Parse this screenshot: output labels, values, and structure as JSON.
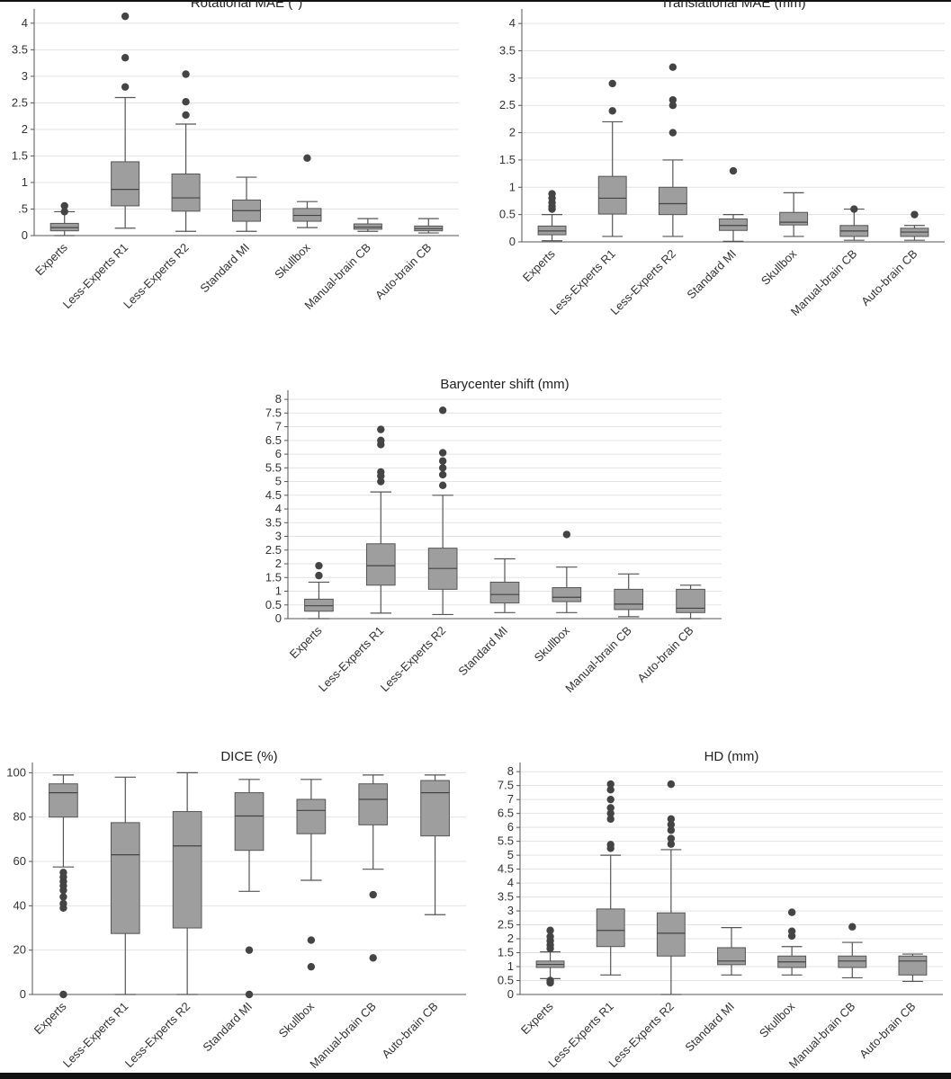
{
  "chart_data": [
    {
      "type": "box",
      "title": "Rotational MAE (°)",
      "ylim": [
        0,
        4.2
      ],
      "yticks": [
        0,
        0.5,
        1,
        1.5,
        2,
        2.5,
        3,
        3.5,
        4
      ],
      "ytick_labels": [
        "0",
        ".5",
        "1",
        "1.5",
        "2",
        "2.5",
        "3",
        "3.5",
        "4"
      ],
      "categories": [
        "Experts",
        "Less-Experts R1",
        "Less-Experts R2",
        "Standard MI",
        "Skullbox",
        "Manual-brain CB",
        "Auto-brain CB"
      ],
      "boxes": [
        {
          "min": 0.0,
          "q1": 0.09,
          "median": 0.15,
          "q3": 0.23,
          "max": 0.45,
          "outliers": [
            0.45,
            0.56
          ]
        },
        {
          "min": 0.14,
          "q1": 0.56,
          "median": 0.87,
          "q3": 1.39,
          "max": 2.6,
          "outliers": [
            2.8,
            3.35,
            4.13
          ]
        },
        {
          "min": 0.08,
          "q1": 0.46,
          "median": 0.71,
          "q3": 1.16,
          "max": 2.1,
          "outliers": [
            2.27,
            2.52,
            3.04
          ]
        },
        {
          "min": 0.08,
          "q1": 0.27,
          "median": 0.47,
          "q3": 0.67,
          "max": 1.1,
          "outliers": []
        },
        {
          "min": 0.15,
          "q1": 0.27,
          "median": 0.38,
          "q3": 0.51,
          "max": 0.64,
          "outliers": [
            1.46
          ]
        },
        {
          "min": 0.08,
          "q1": 0.12,
          "median": 0.16,
          "q3": 0.22,
          "max": 0.32,
          "outliers": []
        },
        {
          "min": 0.05,
          "q1": 0.09,
          "median": 0.13,
          "q3": 0.18,
          "max": 0.32,
          "outliers": []
        }
      ]
    },
    {
      "type": "box",
      "title": "Translational MAE (mm)",
      "ylim": [
        0,
        4.2
      ],
      "yticks": [
        0,
        0.5,
        1,
        1.5,
        2,
        2.5,
        3,
        3.5,
        4
      ],
      "ytick_labels": [
        "0",
        "0.5",
        "1",
        "1.5",
        "2",
        "2.5",
        "3",
        "3.5",
        "4"
      ],
      "categories": [
        "Experts",
        "Less-Experts R1",
        "Less-Experts R2",
        "Standard MI",
        "Skullbox",
        "Manual-brain CB",
        "Auto-brain CB"
      ],
      "boxes": [
        {
          "min": 0.02,
          "q1": 0.13,
          "median": 0.2,
          "q3": 0.29,
          "max": 0.5,
          "outliers": [
            0.6,
            0.65,
            0.72,
            0.8,
            0.88
          ]
        },
        {
          "min": 0.1,
          "q1": 0.51,
          "median": 0.8,
          "q3": 1.2,
          "max": 2.2,
          "outliers": [
            2.4,
            2.9
          ]
        },
        {
          "min": 0.1,
          "q1": 0.5,
          "median": 0.7,
          "q3": 1.0,
          "max": 1.5,
          "outliers": [
            2.0,
            2.5,
            2.6,
            3.2
          ]
        },
        {
          "min": 0.01,
          "q1": 0.21,
          "median": 0.3,
          "q3": 0.42,
          "max": 0.5,
          "outliers": [
            1.3
          ]
        },
        {
          "min": 0.1,
          "q1": 0.31,
          "median": 0.36,
          "q3": 0.54,
          "max": 0.9,
          "outliers": []
        },
        {
          "min": 0.03,
          "q1": 0.1,
          "median": 0.2,
          "q3": 0.3,
          "max": 0.6,
          "outliers": [
            0.6
          ]
        },
        {
          "min": 0.03,
          "q1": 0.1,
          "median": 0.18,
          "q3": 0.25,
          "max": 0.3,
          "outliers": [
            0.5
          ]
        }
      ]
    },
    {
      "type": "box",
      "title": "Barycenter shift (mm)",
      "ylim": [
        0,
        8.2
      ],
      "yticks": [
        0,
        0.5,
        1,
        1.5,
        2,
        2.5,
        3,
        3.5,
        4,
        4.5,
        5,
        5.5,
        6,
        6.5,
        7,
        7.5,
        8
      ],
      "ytick_labels": [
        "0",
        "0.5",
        "1",
        "1.5",
        "2",
        "2.5",
        "3",
        "3.5",
        "4",
        "4.5",
        "5",
        "5.5",
        "6",
        "6.5",
        "7",
        "7.5",
        "8"
      ],
      "categories": [
        "Experts",
        "Less-Experts R1",
        "Less-Experts R2",
        "Standard MI",
        "Skullbox",
        "Manual-brain CB",
        "Auto-brain CB"
      ],
      "boxes": [
        {
          "min": 0.0,
          "q1": 0.27,
          "median": 0.47,
          "q3": 0.71,
          "max": 1.33,
          "outliers": [
            1.57,
            1.93
          ]
        },
        {
          "min": 0.2,
          "q1": 1.22,
          "median": 1.93,
          "q3": 2.73,
          "max": 4.62,
          "outliers": [
            5.0,
            5.2,
            5.35,
            6.35,
            6.5,
            6.9
          ]
        },
        {
          "min": 0.15,
          "q1": 1.07,
          "median": 1.83,
          "q3": 2.57,
          "max": 4.5,
          "outliers": [
            4.86,
            5.25,
            5.5,
            5.75,
            6.05,
            7.6
          ]
        },
        {
          "min": 0.22,
          "q1": 0.57,
          "median": 0.88,
          "q3": 1.33,
          "max": 2.18,
          "outliers": []
        },
        {
          "min": 0.22,
          "q1": 0.62,
          "median": 0.78,
          "q3": 1.13,
          "max": 1.88,
          "outliers": [
            3.07
          ]
        },
        {
          "min": 0.07,
          "q1": 0.33,
          "median": 0.53,
          "q3": 1.07,
          "max": 1.63,
          "outliers": []
        },
        {
          "min": 0.0,
          "q1": 0.22,
          "median": 0.38,
          "q3": 1.07,
          "max": 1.22,
          "outliers": []
        }
      ]
    },
    {
      "type": "box",
      "title": "DICE (%)",
      "ylim": [
        0,
        103
      ],
      "yticks": [
        0,
        20,
        40,
        60,
        80,
        100
      ],
      "ytick_labels": [
        "0",
        "20",
        "40",
        "60",
        "80",
        "100"
      ],
      "categories": [
        "Experts",
        "Less-Experts R1",
        "Less-Experts R2",
        "Standard MI",
        "Skullbox",
        "Manual-brain CB",
        "Auto-brain CB"
      ],
      "boxes": [
        {
          "min": 57.5,
          "q1": 80,
          "median": 91,
          "q3": 95,
          "max": 99,
          "outliers": [
            0,
            39,
            41,
            44,
            47,
            49,
            51,
            53,
            55
          ]
        },
        {
          "min": 0,
          "q1": 27.5,
          "median": 63,
          "q3": 77.5,
          "max": 98,
          "outliers": []
        },
        {
          "min": 0,
          "q1": 30,
          "median": 67,
          "q3": 82.5,
          "max": 100,
          "outliers": []
        },
        {
          "min": 46.5,
          "q1": 65,
          "median": 80.5,
          "q3": 91,
          "max": 97,
          "outliers": [
            0,
            20
          ]
        },
        {
          "min": 51.5,
          "q1": 72.5,
          "median": 83,
          "q3": 88,
          "max": 97,
          "outliers": [
            12.5,
            24.5
          ]
        },
        {
          "min": 56.5,
          "q1": 76.5,
          "median": 88,
          "q3": 95,
          "max": 99,
          "outliers": [
            16.5,
            45
          ]
        },
        {
          "min": 36,
          "q1": 71.5,
          "median": 91,
          "q3": 96.5,
          "max": 99,
          "outliers": []
        }
      ]
    },
    {
      "type": "box",
      "title": "HD (mm)",
      "ylim": [
        0,
        8.2
      ],
      "yticks": [
        0,
        0.5,
        1,
        1.5,
        2,
        2.5,
        3,
        3.5,
        4,
        4.5,
        5,
        5.5,
        6,
        6.5,
        7,
        7.5,
        8
      ],
      "ytick_labels": [
        "0",
        "0.5",
        "1",
        "1.5",
        "2",
        "2.5",
        "3",
        "3.5",
        "4",
        "4.5",
        "5",
        "5.5",
        "6",
        "6.5",
        "7",
        "7.5",
        "8"
      ],
      "categories": [
        "Experts",
        "Less-Experts R1",
        "Less-Experts R2",
        "Standard MI",
        "Skullbox",
        "Manual-brain CB",
        "Auto-brain CB"
      ],
      "boxes": [
        {
          "min": 0.57,
          "q1": 0.97,
          "median": 1.08,
          "q3": 1.2,
          "max": 1.53,
          "outliers": [
            0.42,
            0.5,
            1.65,
            1.78,
            1.93,
            2.08,
            2.3
          ]
        },
        {
          "min": 0.7,
          "q1": 1.72,
          "median": 2.3,
          "q3": 3.07,
          "max": 5.0,
          "outliers": [
            5.25,
            5.38,
            6.3,
            6.5,
            6.7,
            7.0,
            7.35,
            7.55
          ]
        },
        {
          "min": 0.0,
          "q1": 1.38,
          "median": 2.2,
          "q3": 2.93,
          "max": 5.2,
          "outliers": [
            5.4,
            5.6,
            5.9,
            6.1,
            6.3,
            7.55
          ]
        },
        {
          "min": 0.7,
          "q1": 1.07,
          "median": 1.2,
          "q3": 1.68,
          "max": 2.4,
          "outliers": []
        },
        {
          "min": 0.7,
          "q1": 0.97,
          "median": 1.17,
          "q3": 1.38,
          "max": 1.72,
          "outliers": [
            2.1,
            2.27,
            2.95
          ]
        },
        {
          "min": 0.6,
          "q1": 0.97,
          "median": 1.2,
          "q3": 1.38,
          "max": 1.87,
          "outliers": [
            2.43
          ]
        },
        {
          "min": 0.47,
          "q1": 0.7,
          "median": 1.2,
          "q3": 1.38,
          "max": 1.45,
          "outliers": []
        }
      ]
    }
  ]
}
